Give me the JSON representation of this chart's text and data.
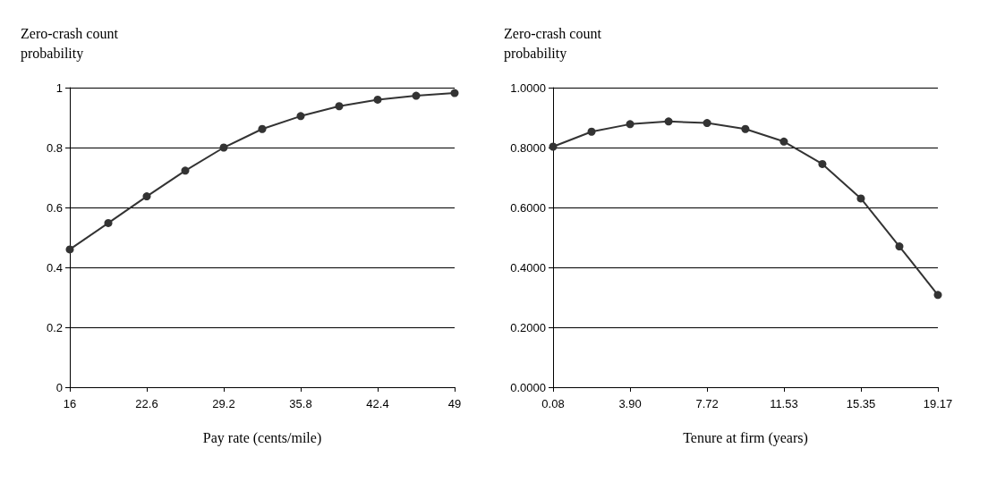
{
  "chart_data": [
    {
      "type": "line",
      "ylabel": "Zero-crash count probability",
      "xlabel": "Pay rate (cents/mile)",
      "x": [
        16,
        19.3,
        22.6,
        25.9,
        29.2,
        32.5,
        35.8,
        39.1,
        42.4,
        45.7,
        49
      ],
      "series": [
        {
          "color": "#333333",
          "values": [
            0.46,
            0.548,
            0.637,
            0.723,
            0.8,
            0.862,
            0.905,
            0.938,
            0.96,
            0.973,
            0.982
          ]
        }
      ],
      "xlim": [
        16,
        49
      ],
      "xticks": [
        16,
        22.6,
        29.2,
        35.8,
        42.4,
        49
      ],
      "ylim": [
        0,
        1
      ],
      "yticks": [
        0,
        0.2,
        0.4,
        0.6,
        0.8,
        1
      ],
      "grid": "y",
      "marker": "circle",
      "line_style": "solid"
    },
    {
      "type": "line",
      "ylabel": "Zero-crash count probability",
      "xlabel": "Tenure at firm (years)",
      "x": [
        0.08,
        1.99,
        3.9,
        5.81,
        7.72,
        9.62,
        11.53,
        13.44,
        15.35,
        17.26,
        19.17
      ],
      "series": [
        {
          "color": "#333333",
          "values": [
            0.803,
            0.853,
            0.878,
            0.887,
            0.882,
            0.862,
            0.82,
            0.745,
            0.63,
            0.47,
            0.308
          ]
        }
      ],
      "xlim": [
        0.08,
        19.17
      ],
      "xticks": [
        0.08,
        {
          "value": 3.9,
          "label": "3.90"
        },
        7.72,
        11.53,
        15.35,
        19.17
      ],
      "ylim": [
        0,
        1
      ],
      "yticks": [
        {
          "value": 0,
          "label": "0.0000"
        },
        {
          "value": 0.2,
          "label": "0.2000"
        },
        {
          "value": 0.4,
          "label": "0.4000"
        },
        {
          "value": 0.6,
          "label": "0.6000"
        },
        {
          "value": 0.8,
          "label": "0.8000"
        },
        {
          "value": 1,
          "label": "1.0000"
        }
      ],
      "grid": "y",
      "marker": "circle",
      "line_style": "solid"
    }
  ]
}
